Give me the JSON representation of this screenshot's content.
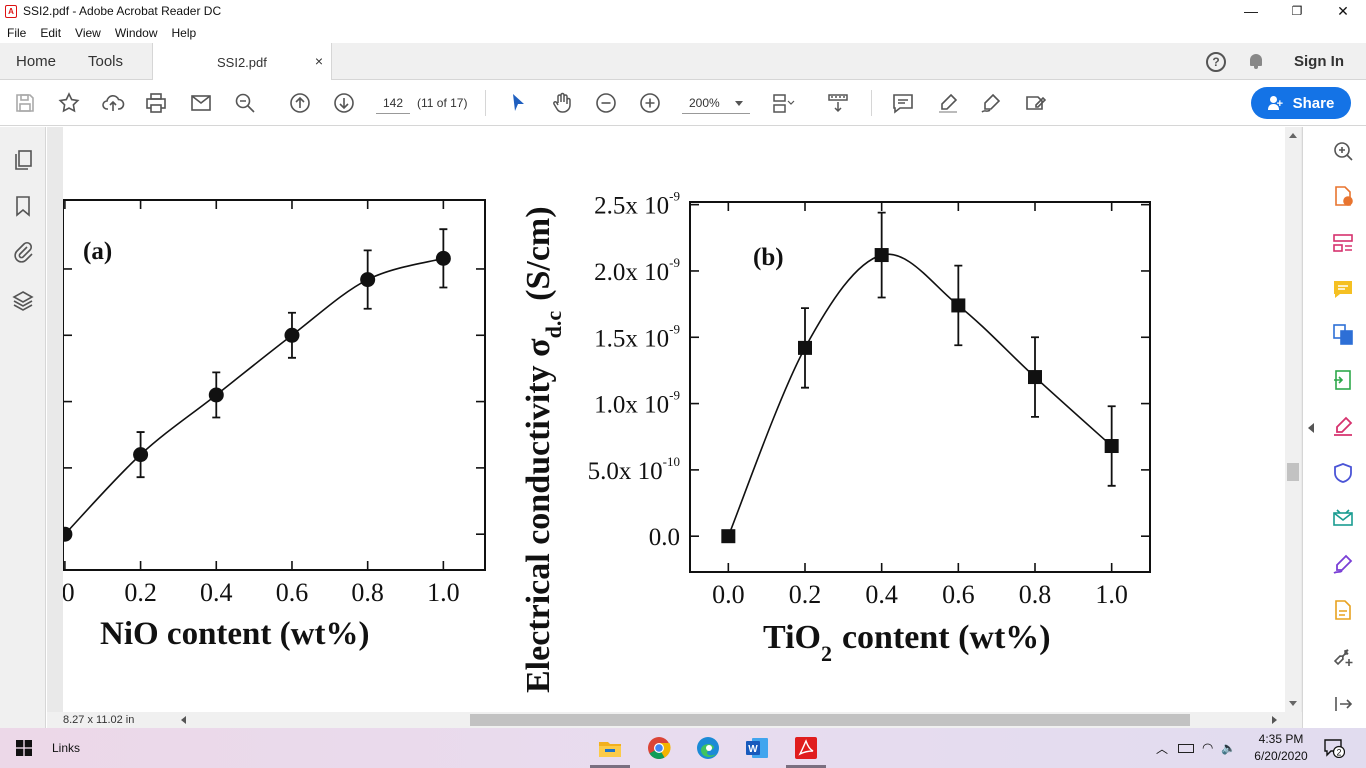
{
  "window": {
    "title": "SSI2.pdf - Adobe Acrobat Reader DC",
    "minimize": "—",
    "maximize": "❐",
    "close": "✕"
  },
  "menu": [
    "File",
    "Edit",
    "View",
    "Window",
    "Help"
  ],
  "tabs": {
    "home": "Home",
    "tools": "Tools",
    "document": "SSI2.pdf",
    "close": "×",
    "sign_in": "Sign In",
    "help": "?"
  },
  "toolbar": {
    "page_number": "142",
    "page_count": "(11 of 17)",
    "zoom": "200%",
    "share_label": "Share",
    "accent": "#1473e6"
  },
  "status": {
    "page_size": "8.27 x 11.02 in"
  },
  "chart_data": [
    {
      "type": "scatter",
      "panel_label": "(a)",
      "xlabel": "NiO content (wt%)",
      "x_tick_labels": [
        ".0",
        "0.2",
        "0.4",
        "0.6",
        "0.8",
        "1.0"
      ],
      "x": [
        0.0,
        0.2,
        0.4,
        0.6,
        0.8,
        1.0
      ],
      "y": [
        0.0,
        0.6,
        1.05,
        1.5,
        1.92,
        2.08
      ],
      "y_err": [
        0.0,
        0.17,
        0.17,
        0.17,
        0.22,
        0.22
      ],
      "xlim": [
        -0.005,
        1.11
      ],
      "ylim": [
        -0.27,
        2.52
      ],
      "marker": "circle",
      "connector": "smooth-line"
    },
    {
      "type": "scatter",
      "panel_label": "(b)",
      "ylabel": "Electrical conductivity σ",
      "ylabel_sub": "d.c",
      "ylabel_units": "(S/cm)",
      "xlabel": "TiO",
      "xlabel_sub": "2",
      "xlabel_suffix": "content (wt%)",
      "x_tick_labels": [
        "0.0",
        "0.2",
        "0.4",
        "0.6",
        "0.8",
        "1.0"
      ],
      "y_tick_labels": [
        {
          "mantissa": "0.0",
          "exp": ""
        },
        {
          "mantissa": "5.0x 10",
          "exp": "-10"
        },
        {
          "mantissa": "1.0x 10",
          "exp": "-9"
        },
        {
          "mantissa": "1.5x 10",
          "exp": "-9"
        },
        {
          "mantissa": "2.0x 10",
          "exp": "-9"
        },
        {
          "mantissa": "2.5x 10",
          "exp": "-9"
        }
      ],
      "x": [
        0.0,
        0.2,
        0.4,
        0.6,
        0.8,
        1.0
      ],
      "y": [
        0.0,
        1.42e-09,
        2.12e-09,
        1.74e-09,
        1.2e-09,
        6.8e-10
      ],
      "y_err": [
        0.0,
        3e-10,
        3.2e-10,
        3e-10,
        3e-10,
        3e-10
      ],
      "xlim": [
        -0.1,
        1.1
      ],
      "ylim": [
        -2.7e-10,
        2.52e-09
      ],
      "marker": "square",
      "connector": "smooth-line"
    }
  ]
}
